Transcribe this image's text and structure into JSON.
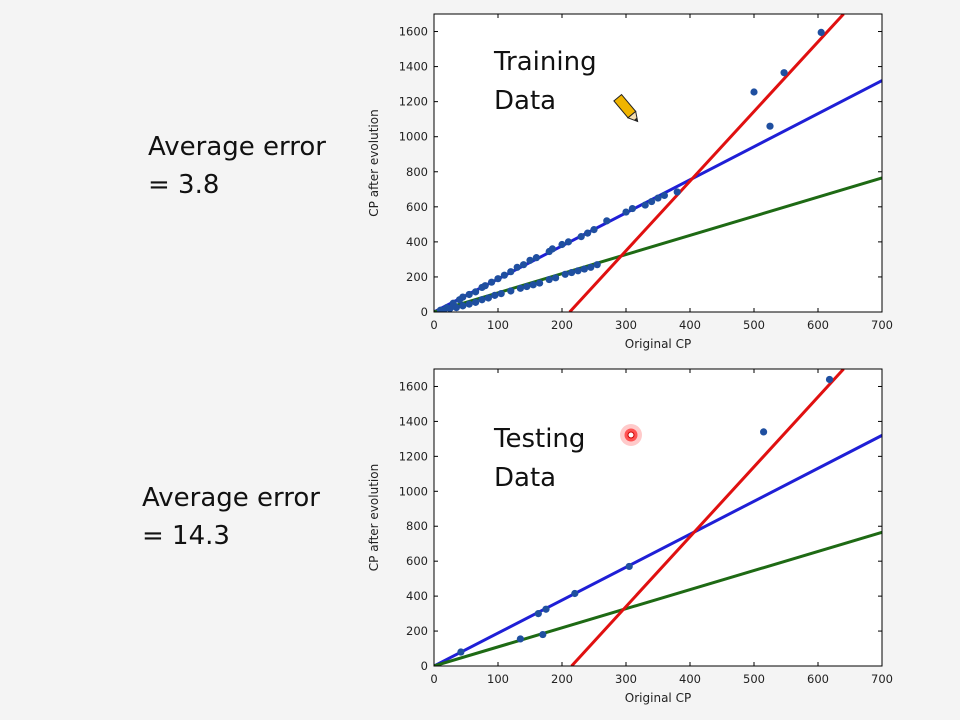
{
  "annotations": {
    "train_error_line1": "Average error",
    "train_error_line2": "= 3.8",
    "test_error_line1": "Average error",
    "test_error_line2": "= 14.3"
  },
  "colors": {
    "blue_fit": "#1f1fd6",
    "green_fit": "#1e6a14",
    "red_fit": "#e01010",
    "points": "#1f4fa0"
  },
  "chart_data": [
    {
      "type": "scatter",
      "panel_label": [
        "Training",
        "Data"
      ],
      "xlabel": "Original CP",
      "ylabel": "CP after evolution",
      "xlim": [
        0,
        700
      ],
      "ylim": [
        0,
        1700
      ],
      "xticks": [
        0,
        100,
        200,
        300,
        400,
        500,
        600,
        700
      ],
      "yticks": [
        0,
        200,
        400,
        600,
        800,
        1000,
        1200,
        1400,
        1600
      ],
      "grid": false,
      "points": [
        [
          10,
          10
        ],
        [
          20,
          25
        ],
        [
          30,
          50
        ],
        [
          40,
          70
        ],
        [
          45,
          85
        ],
        [
          55,
          100
        ],
        [
          65,
          115
        ],
        [
          75,
          140
        ],
        [
          80,
          150
        ],
        [
          90,
          170
        ],
        [
          100,
          190
        ],
        [
          110,
          210
        ],
        [
          120,
          230
        ],
        [
          130,
          255
        ],
        [
          140,
          270
        ],
        [
          150,
          295
        ],
        [
          160,
          310
        ],
        [
          180,
          345
        ],
        [
          185,
          360
        ],
        [
          200,
          385
        ],
        [
          210,
          400
        ],
        [
          230,
          430
        ],
        [
          240,
          450
        ],
        [
          250,
          470
        ],
        [
          270,
          520
        ],
        [
          300,
          570
        ],
        [
          310,
          590
        ],
        [
          330,
          610
        ],
        [
          340,
          630
        ],
        [
          350,
          650
        ],
        [
          360,
          665
        ],
        [
          380,
          685
        ],
        [
          15,
          10
        ],
        [
          25,
          20
        ],
        [
          35,
          25
        ],
        [
          45,
          35
        ],
        [
          55,
          45
        ],
        [
          65,
          55
        ],
        [
          75,
          70
        ],
        [
          85,
          80
        ],
        [
          95,
          95
        ],
        [
          105,
          105
        ],
        [
          120,
          120
        ],
        [
          135,
          135
        ],
        [
          145,
          145
        ],
        [
          155,
          155
        ],
        [
          165,
          165
        ],
        [
          180,
          185
        ],
        [
          190,
          195
        ],
        [
          205,
          215
        ],
        [
          215,
          225
        ],
        [
          225,
          235
        ],
        [
          235,
          245
        ],
        [
          245,
          255
        ],
        [
          255,
          270
        ],
        [
          500,
          1255
        ],
        [
          525,
          1060
        ],
        [
          547,
          1365
        ],
        [
          605,
          1595
        ]
      ],
      "lines": [
        {
          "color": "blue",
          "x": [
            0,
            700
          ],
          "y": [
            0,
            1320
          ]
        },
        {
          "color": "green",
          "x": [
            0,
            700
          ],
          "y": [
            0,
            765
          ]
        },
        {
          "color": "red",
          "x": [
            212,
            640
          ],
          "y": [
            0,
            1700
          ]
        }
      ]
    },
    {
      "type": "scatter",
      "panel_label": [
        "Testing",
        "Data"
      ],
      "xlabel": "Original CP",
      "ylabel": "CP after evolution",
      "xlim": [
        0,
        700
      ],
      "ylim": [
        0,
        1700
      ],
      "xticks": [
        0,
        100,
        200,
        300,
        400,
        500,
        600,
        700
      ],
      "yticks": [
        0,
        200,
        400,
        600,
        800,
        1000,
        1200,
        1400,
        1600
      ],
      "grid": false,
      "points": [
        [
          42,
          80
        ],
        [
          135,
          155
        ],
        [
          170,
          180
        ],
        [
          163,
          300
        ],
        [
          175,
          325
        ],
        [
          220,
          415
        ],
        [
          305,
          570
        ],
        [
          515,
          1340
        ],
        [
          618,
          1640
        ]
      ],
      "lines": [
        {
          "color": "blue",
          "x": [
            0,
            700
          ],
          "y": [
            0,
            1320
          ]
        },
        {
          "color": "green",
          "x": [
            0,
            700
          ],
          "y": [
            0,
            765
          ]
        },
        {
          "color": "red",
          "x": [
            215,
            640
          ],
          "y": [
            0,
            1700
          ]
        }
      ]
    }
  ]
}
